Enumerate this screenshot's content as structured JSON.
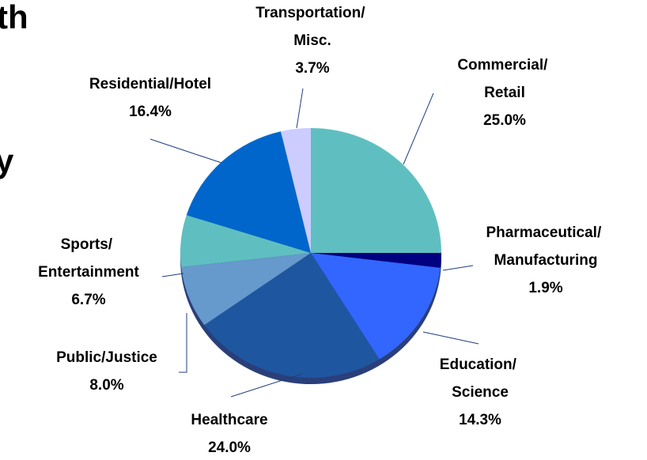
{
  "chart_data": {
    "type": "pie",
    "categories": [
      "Commercial/ Retail",
      "Pharmaceutical/ Manufacturing",
      "Education/ Science",
      "Healthcare",
      "Public/Justice",
      "Sports/ Entertainment",
      "Residential/Hotel",
      "Transportation/ Misc."
    ],
    "values": [
      25.0,
      1.9,
      14.3,
      24.0,
      8.0,
      6.7,
      16.4,
      3.7
    ],
    "value_labels": [
      "25.0%",
      "1.9%",
      "14.3%",
      "24.0%",
      "8.0%",
      "6.7%",
      "16.4%",
      "3.7%"
    ],
    "colors": [
      "#5fbfc0",
      "#000080",
      "#3366ff",
      "#1f56a0",
      "#6699cc",
      "#5fbfc0",
      "#0066cc",
      "#ccccff"
    ],
    "annotations": [
      "th",
      "y"
    ]
  }
}
